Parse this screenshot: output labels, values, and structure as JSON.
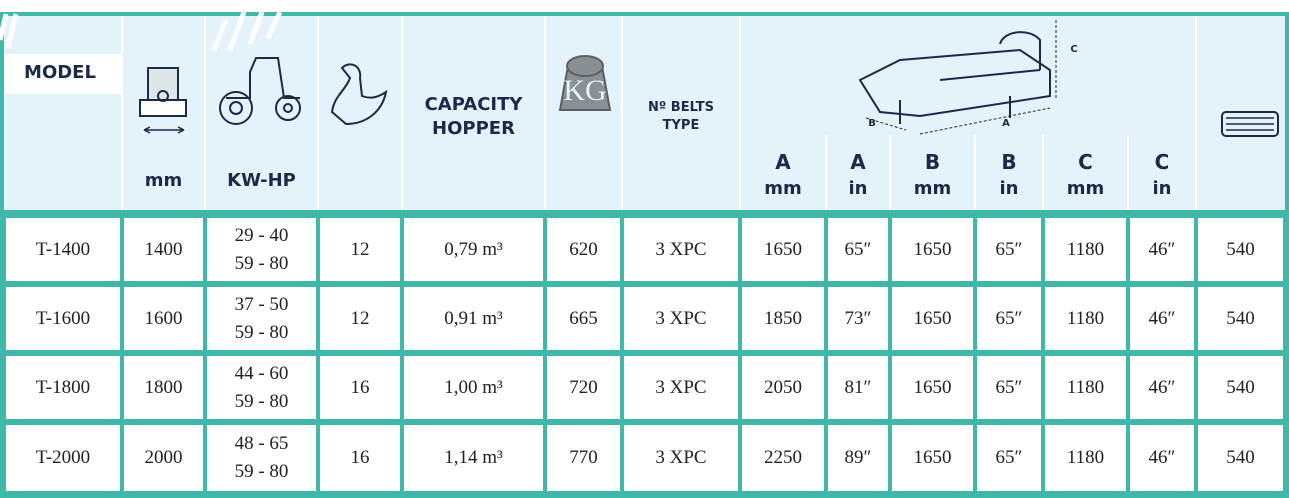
{
  "header": {
    "model": "MODEL",
    "mm": "mm",
    "power": "KW-HP",
    "capacity": [
      "CAPACITY",
      "HOPPER"
    ],
    "belts": [
      "Nº BELTS",
      "TYPE"
    ],
    "dimensions": [
      {
        "name": "A",
        "unit": "mm"
      },
      {
        "name": "A",
        "unit": "in"
      },
      {
        "name": "B",
        "unit": "mm"
      },
      {
        "name": "B",
        "unit": "in"
      },
      {
        "name": "C",
        "unit": "mm"
      },
      {
        "name": "C",
        "unit": "in"
      }
    ],
    "drawing_labels": [
      "B",
      "A",
      "C"
    ]
  },
  "table": {
    "rows": [
      [
        "T-1400",
        "1400",
        [
          "29 - 40",
          "59 - 80"
        ],
        "12",
        "0,79 m³",
        "620",
        "3 XPC",
        "1650",
        "65″",
        "1650",
        "65″",
        "1180",
        "46″",
        "540"
      ],
      [
        "T-1600",
        "1600",
        [
          "37 - 50",
          "59 - 80"
        ],
        "12",
        "0,91 m³",
        "665",
        "3 XPC",
        "1850",
        "73″",
        "1650",
        "65″",
        "1180",
        "46″",
        "540"
      ],
      [
        "T-1800",
        "1800",
        [
          "44 - 60",
          "59 - 80"
        ],
        "16",
        "1,00 m³",
        "720",
        "3 XPC",
        "2050",
        "81″",
        "1650",
        "65″",
        "1180",
        "46″",
        "540"
      ],
      [
        "T-2000",
        "2000",
        [
          "48 - 65",
          "59 - 80"
        ],
        "16",
        "1,14 m³",
        "770",
        "3 XPC",
        "2250",
        "89″",
        "1650",
        "65″",
        "1180",
        "46″",
        "540"
      ]
    ]
  }
}
